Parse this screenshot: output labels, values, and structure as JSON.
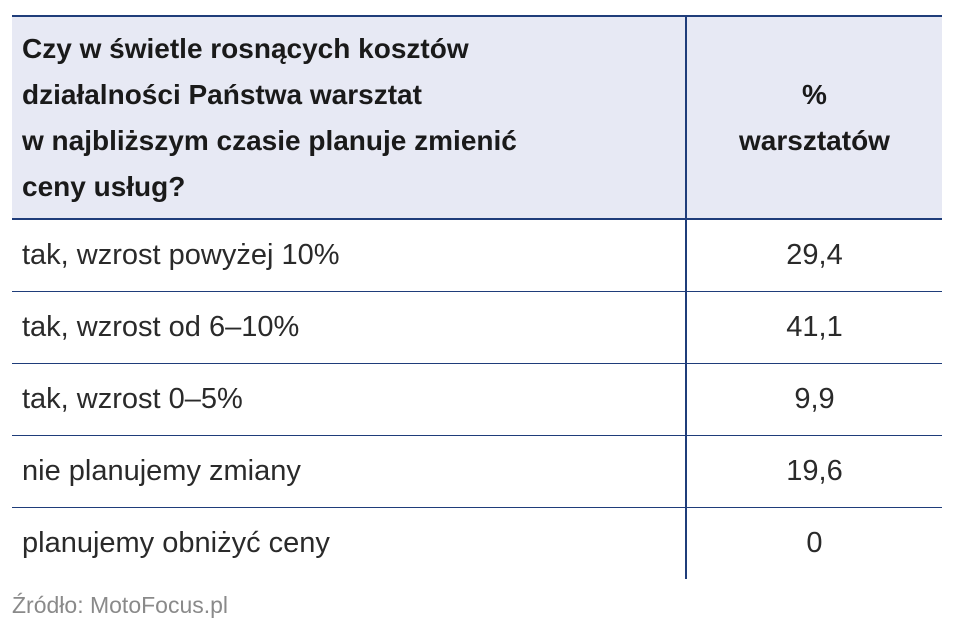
{
  "table": {
    "question_lines": [
      "Czy w świetle rosnących kosztów",
      "działalności Państwa warsztat",
      "w najbliższym czasie planuje zmienić",
      "ceny usług?"
    ],
    "percent_header_lines": [
      "%",
      "warsztatów"
    ],
    "rows": [
      {
        "answer": "tak, wzrost powyżej 10%",
        "value": "29,4"
      },
      {
        "answer": "tak, wzrost od 6–10%",
        "value": "41,1"
      },
      {
        "answer": "tak, wzrost 0–5%",
        "value": "9,9"
      },
      {
        "answer": "nie planujemy zmiany",
        "value": "19,6"
      },
      {
        "answer": "planujemy obniżyć ceny",
        "value": "0"
      }
    ]
  },
  "source": "Źródło: MotoFocus.pl",
  "colors": {
    "header_background": "#e7e9f4",
    "rule_lines": "#1f3d7a"
  },
  "chart_data": {
    "type": "table",
    "columns": [
      "Czy w świetle rosnących kosztów działalności Państwa warsztat w najbliższym czasie planuje zmienić ceny usług?",
      "% warsztatów"
    ],
    "categories": [
      "tak, wzrost powyżej 10%",
      "tak, wzrost od 6–10%",
      "tak, wzrost 0–5%",
      "nie planujemy zmiany",
      "planujemy obniżyć ceny"
    ],
    "values": [
      29.4,
      41.1,
      9.9,
      19.6,
      0
    ]
  }
}
